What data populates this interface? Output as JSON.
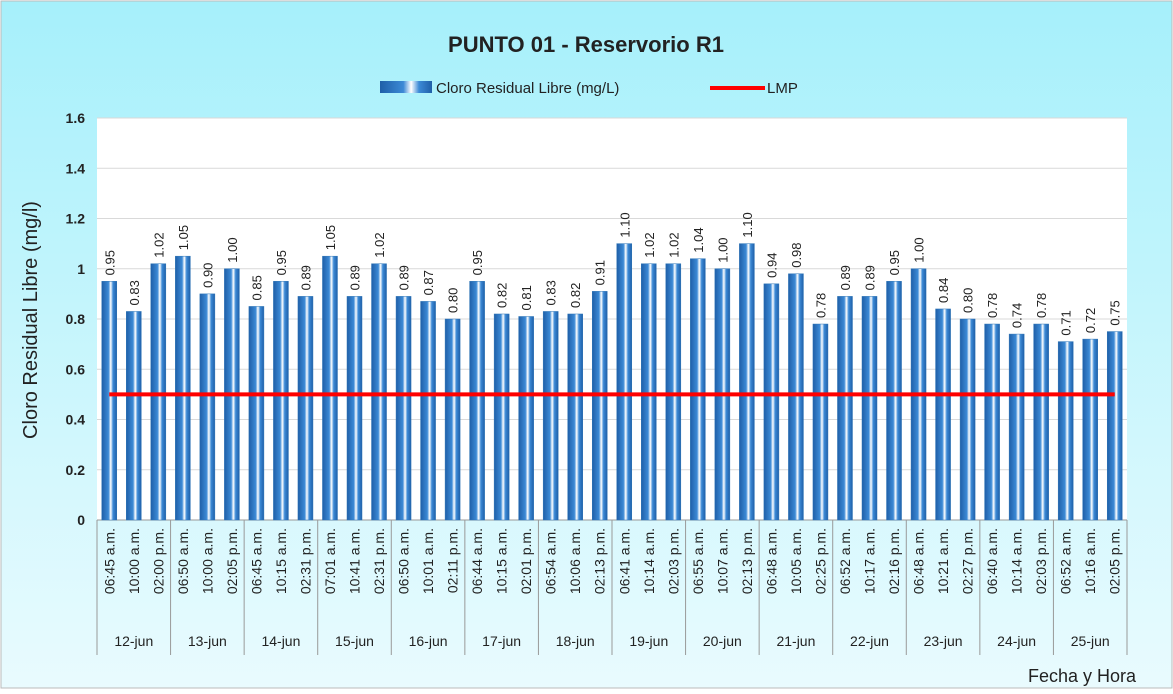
{
  "chart_data": {
    "type": "bar",
    "title": "PUNTO 01 - Reservorio R1",
    "y_label": "Cloro Residual Libre (mg/l)",
    "x_label": "Fecha y Hora",
    "categories": [
      "06:45 a.m.",
      "10:00 a.m.",
      "02:00 p.m.",
      "06:50 a.m.",
      "10:00 a.m.",
      "02:05 p.m.",
      "06:45 a.m.",
      "10:15 a.m.",
      "02:31 p.m.",
      "07:01 a.m.",
      "10:41 a.m.",
      "02:31 p.m.",
      "06:50 a.m.",
      "10:01 a.m.",
      "02:11 p.m.",
      "06:44 a.m.",
      "10:15 a.m.",
      "02:01 p.m.",
      "06:54 a.m.",
      "10:06 a.m.",
      "02:13 p.m.",
      "06:41 a.m.",
      "10:14 a.m.",
      "02:03 p.m.",
      "06:55 a.m.",
      "10:07 a.m.",
      "02:13 p.m.",
      "06:48 a.m.",
      "10:05 a.m.",
      "02:25 p.m.",
      "06:52 a.m.",
      "10:17 a.m.",
      "02:16 p.m.",
      "06:48 a.m.",
      "10:21 a.m.",
      "02:27 p.m.",
      "06:40 a.m.",
      "10:14 a.m.",
      "02:03 p.m.",
      "06:52 a.m.",
      "10:16 a.m.",
      "02:05 p.m."
    ],
    "groups": [
      "12-jun",
      "13-jun",
      "14-jun",
      "15-jun",
      "16-jun",
      "17-jun",
      "18-jun",
      "19-jun",
      "20-jun",
      "21-jun",
      "22-jun",
      "23-jun",
      "24-jun",
      "25-jun"
    ],
    "series": [
      {
        "name": "Cloro Residual Libre (mg/L)",
        "color": "#2e75b6",
        "values": [
          0.95,
          0.83,
          1.02,
          1.05,
          0.9,
          1.0,
          0.85,
          0.95,
          0.89,
          1.05,
          0.89,
          1.02,
          0.89,
          0.87,
          0.8,
          0.95,
          0.82,
          0.81,
          0.83,
          0.82,
          0.91,
          1.1,
          1.02,
          1.02,
          1.04,
          1.0,
          1.1,
          0.94,
          0.98,
          0.78,
          0.89,
          0.89,
          0.95,
          1.0,
          0.84,
          0.8,
          0.78,
          0.74,
          0.78,
          0.71,
          0.72,
          0.75
        ],
        "value_labels": [
          "0.95",
          "0.83",
          "1.02",
          "1.05",
          "0.90",
          "1.00",
          "0.85",
          "0.95",
          "0.89",
          "1.05",
          "0.89",
          "1.02",
          "0.89",
          "0.87",
          "0.80",
          "0.95",
          "0.82",
          "0.81",
          "0.83",
          "0.82",
          "0.91",
          "1.10",
          "1.02",
          "1.02",
          "1.04",
          "1.00",
          "1.10",
          "0.94",
          "0.98",
          "0.78",
          "0.89",
          "0.89",
          "0.95",
          "1.00",
          "0.84",
          "0.80",
          "0.78",
          "0.74",
          "0.78",
          "0.71",
          "0.72",
          "0.75"
        ]
      },
      {
        "name": "LMP",
        "color": "#ff0000",
        "type": "line",
        "values": [
          0.5,
          0.5,
          0.5,
          0.5,
          0.5,
          0.5,
          0.5,
          0.5,
          0.5,
          0.5,
          0.5,
          0.5,
          0.5,
          0.5,
          0.5,
          0.5,
          0.5,
          0.5,
          0.5,
          0.5,
          0.5,
          0.5,
          0.5,
          0.5,
          0.5,
          0.5,
          0.5,
          0.5,
          0.5,
          0.5,
          0.5,
          0.5,
          0.5,
          0.5,
          0.5,
          0.5,
          0.5,
          0.5,
          0.5,
          0.5,
          0.5,
          0.5
        ]
      }
    ],
    "ylim": [
      0,
      1.6
    ],
    "yticks": [
      0,
      0.2,
      0.4,
      0.6,
      0.8,
      1,
      1.2,
      1.4,
      1.6
    ],
    "grid": true
  }
}
